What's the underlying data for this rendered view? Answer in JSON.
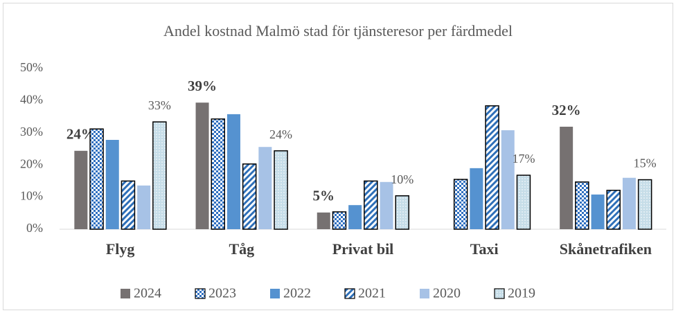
{
  "chart_data": {
    "type": "bar",
    "title": "Andel kostnad Malmö stad för tjänsteresor per färdmedel",
    "categories": [
      "Flyg",
      "Tåg",
      "Privat bil",
      "Taxi",
      "Skånetrafiken"
    ],
    "series": [
      {
        "name": "2024",
        "color": "#767171",
        "pattern": "solid",
        "bold_labels": true,
        "values": [
          24.4,
          39.4,
          5.2,
          null,
          31.9
        ],
        "value_labels": [
          "24%",
          "39%",
          "5%",
          null,
          "32%"
        ]
      },
      {
        "name": "2023",
        "color": "#2f6fc0",
        "pattern": "checker",
        "values": [
          31.2,
          34.3,
          5.4,
          15.5,
          14.7
        ]
      },
      {
        "name": "2022",
        "color": "#5592d0",
        "pattern": "solid",
        "values": [
          27.8,
          35.8,
          7.5,
          19,
          10.8
        ]
      },
      {
        "name": "2021",
        "color": "#2e6fb8",
        "pattern": "stripes",
        "values": [
          15,
          20.3,
          15,
          38.4,
          12.1
        ]
      },
      {
        "name": "2020",
        "color": "#a7c2e6",
        "pattern": "solid",
        "values": [
          13.6,
          25.6,
          14.7,
          30.8,
          16
        ]
      },
      {
        "name": "2019",
        "color": "#c6dde8",
        "pattern": "dots",
        "values": [
          33.4,
          24.4,
          10.4,
          16.8,
          15.4
        ],
        "value_labels": [
          "33%",
          "24%",
          "10%",
          "17%",
          "15%"
        ]
      }
    ],
    "ylim": [
      0,
      50
    ],
    "yticks": [
      {
        "value": 0,
        "label": "0%"
      },
      {
        "value": 10,
        "label": "10%"
      },
      {
        "value": 20,
        "label": "20%"
      },
      {
        "value": 30,
        "label": "30%"
      },
      {
        "value": 40,
        "label": "40%"
      },
      {
        "value": 50,
        "label": "50%"
      }
    ],
    "grid": false,
    "legend": "bottom"
  }
}
